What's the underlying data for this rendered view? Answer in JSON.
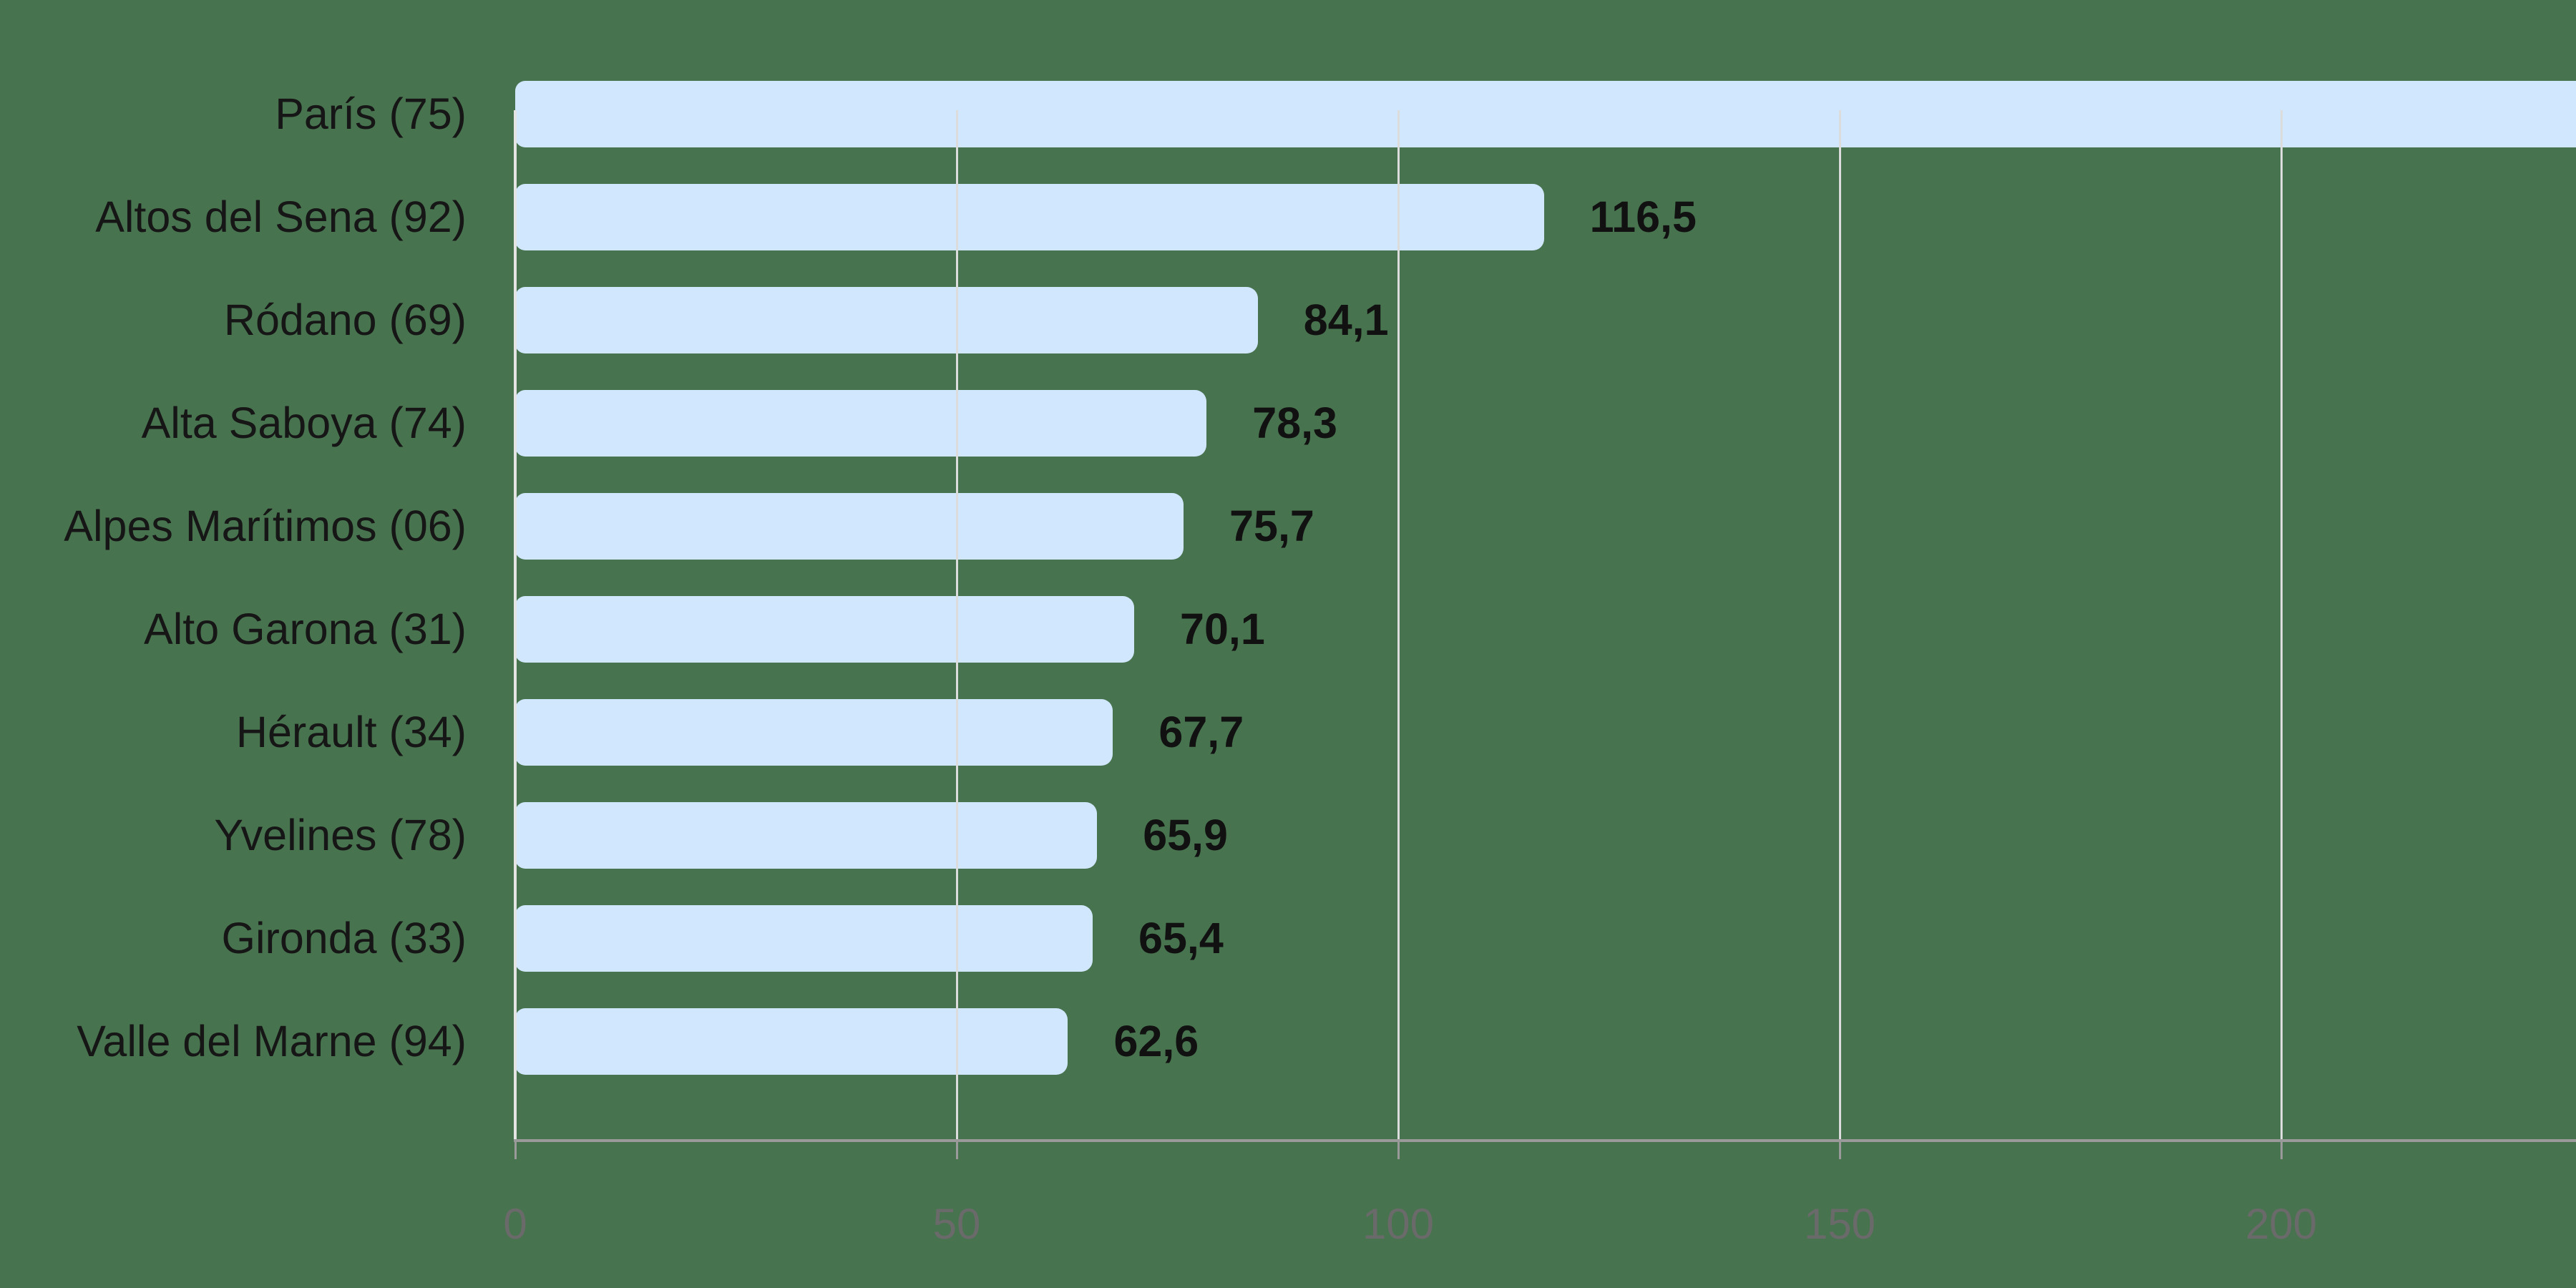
{
  "chart_data": {
    "type": "bar",
    "orientation": "horizontal",
    "title": "",
    "xlabel": "",
    "ylabel": "",
    "categories": [
      "París (75)",
      "Altos del Sena (92)",
      "Ródano (69)",
      "Alta Saboya (74)",
      "Alpes Marítimos (06)",
      "Alto Garona (31)",
      "Hérault (34)",
      "Yvelines (78)",
      "Gironda (33)",
      "Valle del Marne (94)"
    ],
    "values": [
      240,
      116.5,
      84.1,
      78.3,
      75.7,
      70.1,
      67.7,
      65.9,
      65.4,
      62.6
    ],
    "value_labels": [
      "",
      "116,5",
      "84,1",
      "78,3",
      "75,7",
      "70,1",
      "67,7",
      "65,9",
      "65,4",
      "62,6"
    ],
    "notes": "París bar extends beyond the visible plot area (value > ~233); its value label is not visible.",
    "x_ticks": [
      "0",
      "50",
      "100",
      "150",
      "200"
    ],
    "x_tick_values": [
      0,
      50,
      100,
      150,
      200
    ],
    "xlim": [
      0,
      233
    ],
    "grid": true,
    "legend": null,
    "colors": {
      "background": "#48734f",
      "bar": "#d1e7fd",
      "gridline": "#dcdcdc",
      "axis": "#9a9a9a",
      "tick_label": "#6a6a6a",
      "category_label": "#161616",
      "value_label": "#111111"
    }
  }
}
